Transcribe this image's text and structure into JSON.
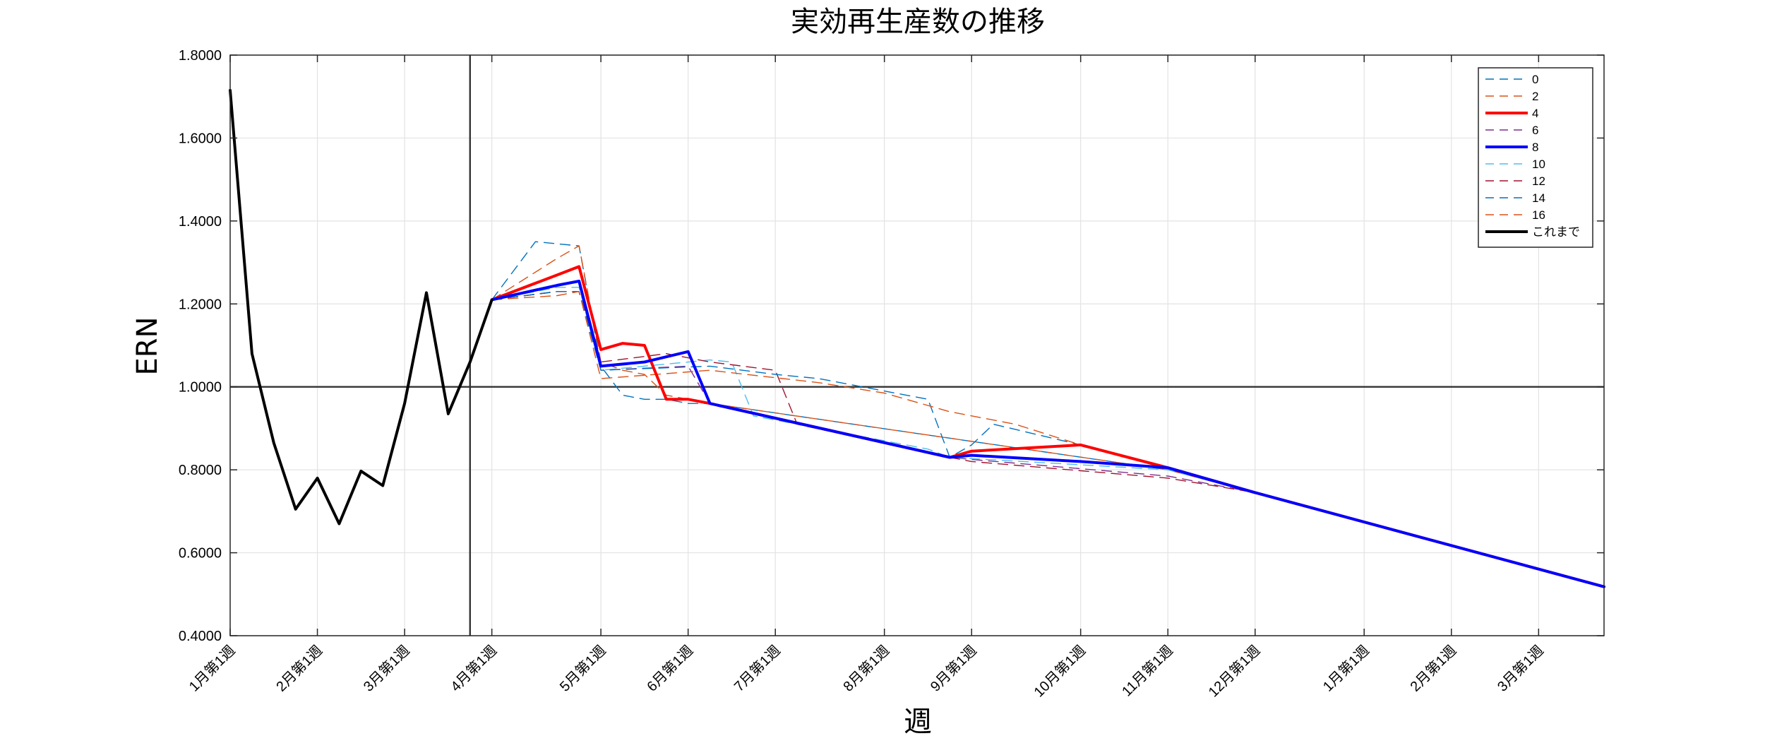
{
  "chart_data": {
    "type": "line",
    "title": "実効再生産数の推移",
    "xlabel": "週",
    "ylabel": "ERN",
    "ylim": [
      0.4,
      1.8
    ],
    "yticks": [
      "0.4000",
      "0.6000",
      "0.8000",
      "1.0000",
      "1.2000",
      "1.4000",
      "1.6000",
      "1.8000"
    ],
    "xlim": [
      1,
      64
    ],
    "xticks": [
      {
        "x": 1,
        "label": "1月第1週"
      },
      {
        "x": 5,
        "label": "2月第1週"
      },
      {
        "x": 9,
        "label": "3月第1週"
      },
      {
        "x": 13,
        "label": "4月第1週"
      },
      {
        "x": 18,
        "label": "5月第1週"
      },
      {
        "x": 22,
        "label": "6月第1週"
      },
      {
        "x": 26,
        "label": "7月第1週"
      },
      {
        "x": 31,
        "label": "8月第1週"
      },
      {
        "x": 35,
        "label": "9月第1週"
      },
      {
        "x": 40,
        "label": "10月第1週"
      },
      {
        "x": 44,
        "label": "11月第1週"
      },
      {
        "x": 48,
        "label": "12月第1週"
      },
      {
        "x": 53,
        "label": "1月第1週"
      },
      {
        "x": 57,
        "label": "2月第1週"
      },
      {
        "x": 61,
        "label": "3月第1週"
      }
    ],
    "reference_lines": {
      "y": 1.0,
      "x": 12
    },
    "grid": true,
    "legend": "top-right",
    "series": [
      {
        "name": "0",
        "color": "#0072BD",
        "style": "dashed",
        "width": 1.4,
        "x": [
          13,
          15,
          17,
          18,
          19,
          20,
          21,
          22,
          23,
          44,
          48,
          64
        ],
        "y": [
          1.21,
          1.35,
          1.34,
          1.05,
          0.98,
          0.97,
          0.97,
          0.96,
          0.96,
          0.8,
          0.745,
          0.518
        ]
      },
      {
        "name": "2",
        "color": "#D95319",
        "style": "dashed",
        "width": 1.4,
        "x": [
          13,
          16,
          17,
          18,
          19,
          20,
          21,
          22,
          23,
          44,
          48,
          64
        ],
        "y": [
          1.21,
          1.31,
          1.34,
          1.06,
          1.04,
          1.03,
          0.98,
          0.97,
          0.96,
          0.8,
          0.745,
          0.518
        ]
      },
      {
        "name": "4",
        "color": "#FF0000",
        "style": "solid",
        "width": 4,
        "x": [
          13,
          16,
          17,
          18,
          19,
          20,
          21,
          22,
          23,
          34,
          35,
          40,
          44,
          48,
          64
        ],
        "y": [
          1.21,
          1.27,
          1.29,
          1.09,
          1.105,
          1.1,
          0.97,
          0.97,
          0.96,
          0.83,
          0.845,
          0.86,
          0.805,
          0.745,
          0.518
        ]
      },
      {
        "name": "6",
        "color": "#7E2F8E",
        "style": "dashed",
        "width": 1.4,
        "x": [
          13,
          16,
          17,
          18,
          22,
          23,
          34,
          35,
          44,
          48,
          64
        ],
        "y": [
          1.21,
          1.23,
          1.23,
          1.04,
          1.05,
          0.96,
          0.83,
          0.825,
          0.785,
          0.745,
          0.518
        ]
      },
      {
        "name": "8",
        "color": "#0000FF",
        "style": "solid",
        "width": 4,
        "x": [
          13,
          16,
          17,
          18,
          20,
          22,
          23,
          34,
          35,
          40,
          44,
          48,
          64
        ],
        "y": [
          1.21,
          1.245,
          1.255,
          1.05,
          1.06,
          1.085,
          0.96,
          0.83,
          0.835,
          0.82,
          0.805,
          0.745,
          0.518
        ]
      },
      {
        "name": "10",
        "color": "#4DBEEE",
        "style": "dashed",
        "width": 1.4,
        "x": [
          13,
          16,
          17,
          18,
          23,
          24,
          25,
          33,
          34,
          44,
          48,
          64
        ],
        "y": [
          1.21,
          1.24,
          1.24,
          1.04,
          1.065,
          1.06,
          0.93,
          0.85,
          0.83,
          0.8,
          0.745,
          0.518
        ]
      },
      {
        "name": "12",
        "color": "#A2142F",
        "style": "dashed",
        "width": 1.4,
        "x": [
          13,
          16,
          17,
          18,
          21,
          23,
          26,
          27,
          34,
          35,
          44,
          48,
          64
        ],
        "y": [
          1.21,
          1.23,
          1.23,
          1.06,
          1.08,
          1.06,
          1.04,
          0.91,
          0.83,
          0.82,
          0.78,
          0.745,
          0.518
        ]
      },
      {
        "name": "14",
        "color": "#0072BD",
        "style": "dashed",
        "width": 1.4,
        "x": [
          13,
          16,
          17,
          18,
          23,
          26,
          28,
          30,
          33,
          34,
          35,
          36,
          40,
          44,
          48,
          64
        ],
        "y": [
          1.21,
          1.23,
          1.23,
          1.04,
          1.05,
          1.03,
          1.02,
          1.0,
          0.97,
          0.83,
          0.86,
          0.91,
          0.86,
          0.805,
          0.745,
          0.518
        ]
      },
      {
        "name": "16",
        "color": "#D95319",
        "style": "dashed",
        "width": 1.4,
        "x": [
          13,
          16,
          17,
          18,
          23,
          28,
          31,
          34,
          37,
          40,
          44,
          48,
          64
        ],
        "y": [
          1.21,
          1.22,
          1.23,
          1.02,
          1.04,
          1.01,
          0.985,
          0.94,
          0.91,
          0.86,
          0.805,
          0.745,
          0.518
        ]
      },
      {
        "name": "これまで",
        "color": "#000000",
        "style": "solid",
        "width": 4,
        "x": [
          1,
          2,
          3,
          4,
          5,
          6,
          7,
          8,
          9,
          10,
          11,
          12,
          13
        ],
        "y": [
          1.715,
          1.08,
          0.865,
          0.705,
          0.78,
          0.67,
          0.797,
          0.762,
          0.96,
          1.227,
          0.935,
          1.06,
          1.21
        ]
      }
    ]
  }
}
